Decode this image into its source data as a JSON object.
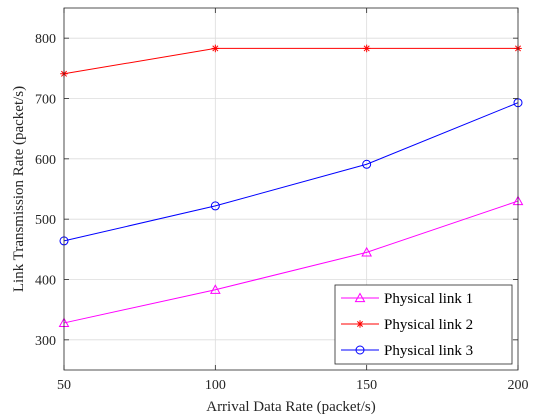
{
  "chart_data": {
    "type": "line",
    "xlabel": "Arrival Data Rate (packet/s)",
    "ylabel": "Link Transmission Rate (packet/s)",
    "xlim": [
      50,
      200
    ],
    "ylim": [
      250,
      850
    ],
    "x_ticks": [
      50,
      100,
      150,
      200
    ],
    "y_ticks": [
      300,
      400,
      500,
      600,
      700,
      800
    ],
    "grid": true,
    "legend_position": "bottom-right",
    "x": [
      50,
      100,
      150,
      200
    ],
    "series": [
      {
        "name": "Physical link 1",
        "values": [
          328,
          383,
          445,
          530
        ],
        "color": "#ff00ff",
        "marker": "triangle"
      },
      {
        "name": "Physical link 2",
        "values": [
          741,
          783,
          783,
          783
        ],
        "color": "#ff0000",
        "marker": "asterisk"
      },
      {
        "name": "Physical link 3",
        "values": [
          464,
          522,
          591,
          693
        ],
        "color": "#0000ff",
        "marker": "circle"
      }
    ]
  }
}
